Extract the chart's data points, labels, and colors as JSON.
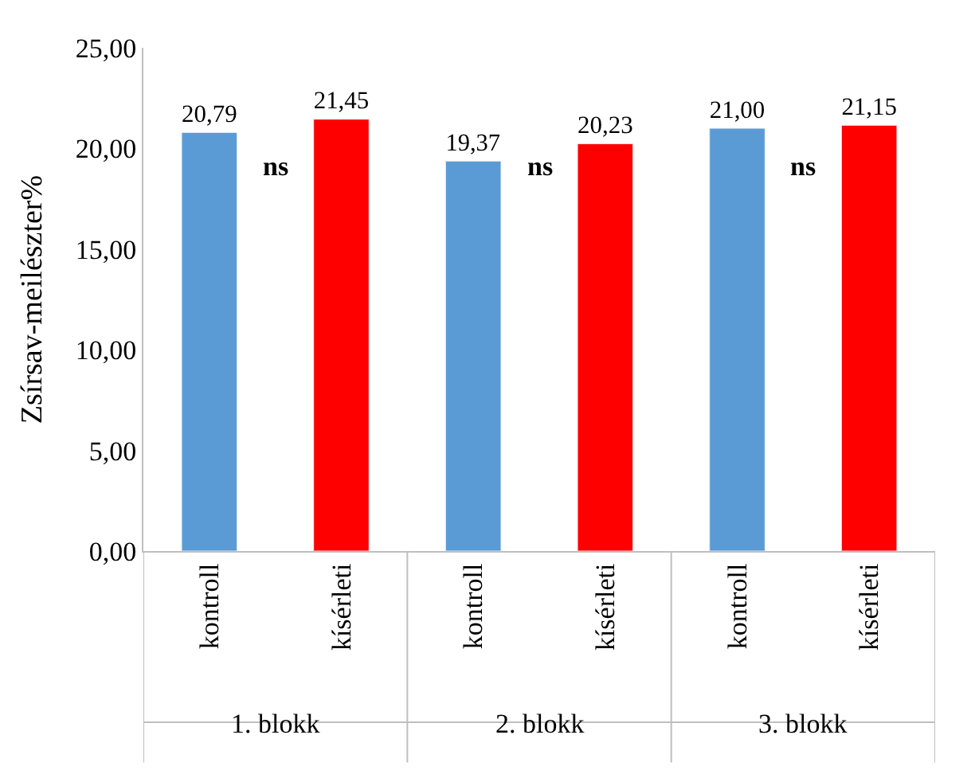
{
  "chart_data": {
    "type": "bar",
    "ylabel": "Zsírsav-meilészter%",
    "categories": [
      "kontroll",
      "kísérleti",
      "kontroll",
      "kísérleti",
      "kontroll",
      "kísérleti"
    ],
    "values": [
      20.79,
      21.45,
      19.37,
      20.23,
      21.0,
      21.15
    ],
    "colors": [
      "#5b9bd5",
      "#ff0000",
      "#5b9bd5",
      "#ff0000",
      "#5b9bd5",
      "#ff0000"
    ],
    "value_labels": [
      "20,79",
      "21,45",
      "19,37",
      "20,23",
      "21,00",
      "21,15"
    ],
    "ylim": [
      0,
      25
    ],
    "yticks": [
      {
        "value": 0,
        "label": "0,00"
      },
      {
        "value": 5,
        "label": "5,00"
      },
      {
        "value": 10,
        "label": "10,00"
      },
      {
        "value": 15,
        "label": "15,00"
      },
      {
        "value": 20,
        "label": "20,00"
      },
      {
        "value": 25,
        "label": "25,00"
      }
    ],
    "annotations": [
      "ns",
      "ns",
      "ns",
      "1. blokk",
      "2. blokk",
      "3. blokk"
    ],
    "legend": false
  }
}
